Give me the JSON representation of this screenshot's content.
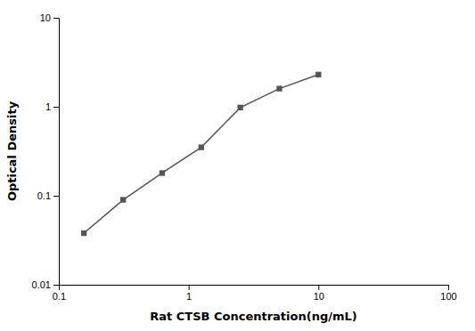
{
  "chart_data": {
    "type": "line",
    "x": [
      0.156,
      0.313,
      0.625,
      1.25,
      2.5,
      5.0,
      10.0
    ],
    "values": [
      0.038,
      0.09,
      0.18,
      0.35,
      0.98,
      1.6,
      2.3
    ],
    "xlabel": "Rat CTSB Concentration(ng/mL)",
    "ylabel": "Optical Density",
    "xlim": [
      0.1,
      100
    ],
    "ylim": [
      0.01,
      10
    ],
    "xticks": [
      0.1,
      1,
      10,
      100
    ],
    "yticks": [
      0.01,
      0.1,
      1,
      10
    ],
    "log": true,
    "grid": false,
    "color": "#555555",
    "marker": "square"
  }
}
